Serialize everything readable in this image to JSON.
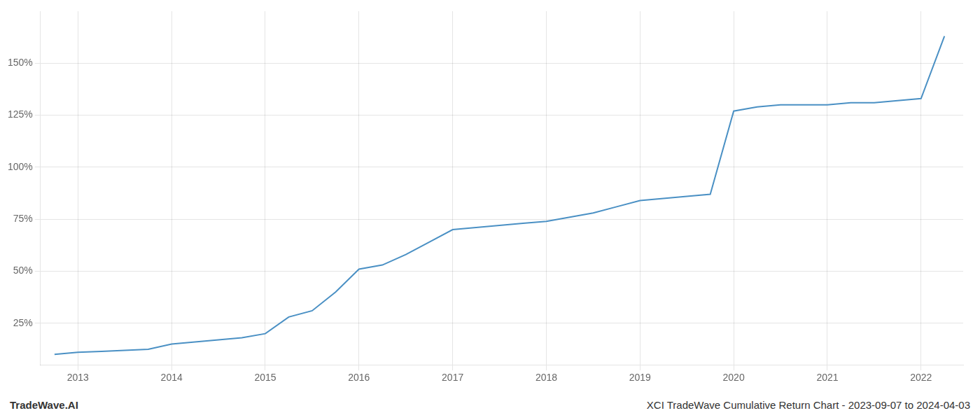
{
  "chart_data": {
    "type": "line",
    "x": [
      2012.75,
      2013.0,
      2013.25,
      2013.5,
      2013.75,
      2014.0,
      2014.25,
      2014.5,
      2014.75,
      2015.0,
      2015.25,
      2015.5,
      2015.75,
      2016.0,
      2016.25,
      2016.5,
      2016.75,
      2017.0,
      2017.25,
      2017.5,
      2017.75,
      2018.0,
      2018.25,
      2018.5,
      2018.75,
      2019.0,
      2019.25,
      2019.5,
      2019.75,
      2020.0,
      2020.25,
      2020.5,
      2020.75,
      2021.0,
      2021.25,
      2021.5,
      2021.75,
      2022.0,
      2022.25
    ],
    "values": [
      10,
      11,
      11.5,
      12,
      12.5,
      15,
      16,
      17,
      18,
      20,
      28,
      31,
      40,
      51,
      53,
      58,
      64,
      70,
      71,
      72,
      73,
      74,
      76,
      78,
      81,
      84,
      85,
      86,
      87,
      127,
      129,
      130,
      130,
      130,
      131,
      131,
      132,
      133,
      163
    ],
    "color": "#4a90c4",
    "xlim": [
      2012.6,
      2022.45
    ],
    "xticks": [
      2013,
      2014,
      2015,
      2016,
      2017,
      2018,
      2019,
      2020,
      2021,
      2022
    ],
    "ylim": [
      5,
      175
    ],
    "yticks": [
      {
        "value": 25,
        "label": "25%"
      },
      {
        "value": 50,
        "label": "50%"
      },
      {
        "value": 75,
        "label": "75%"
      },
      {
        "value": 100,
        "label": "100%"
      },
      {
        "value": 125,
        "label": "125%"
      },
      {
        "value": 150,
        "label": "150%"
      }
    ],
    "grid": true,
    "annotations": [
      "TradeWave.AI",
      "XCI TradeWave Cumulative Return Chart - 2023-09-07 to 2024-04-03"
    ]
  }
}
